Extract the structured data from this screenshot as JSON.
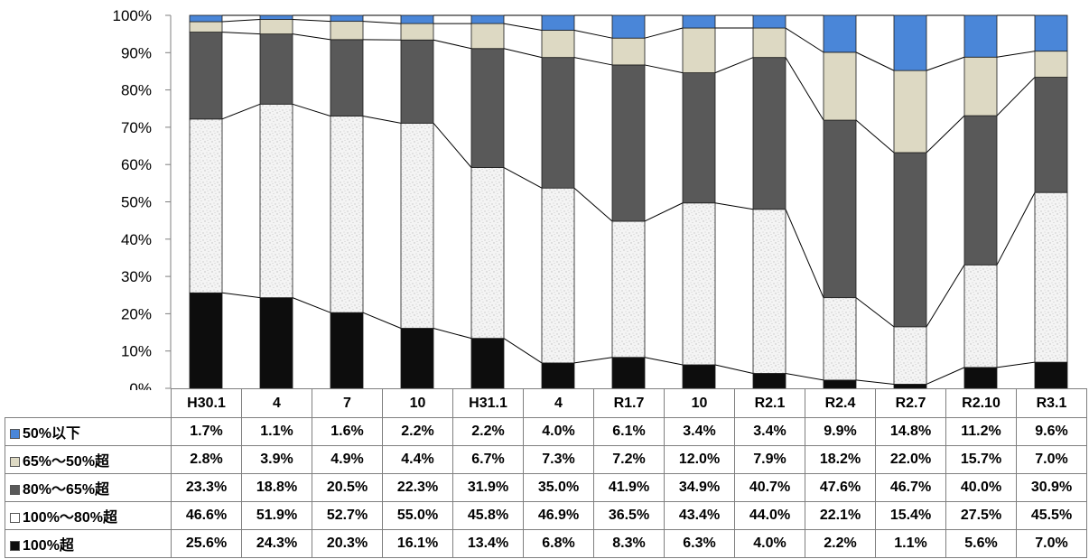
{
  "chart_data": {
    "type": "bar",
    "stacked": true,
    "categories": [
      "H30.1",
      "4",
      "7",
      "10",
      "H31.1",
      "4",
      "R1.7",
      "10",
      "R2.1",
      "R2.4",
      "R2.7",
      "R2.10",
      "R3.1"
    ],
    "ylim": [
      0,
      100
    ],
    "y_tick_labels": [
      "0%",
      "10%",
      "20%",
      "30%",
      "40%",
      "50%",
      "60%",
      "70%",
      "80%",
      "90%",
      "100%"
    ],
    "value_suffix": "%",
    "grid": false,
    "series_lines": true,
    "legend": "data-table-below",
    "series": [
      {
        "name": "100%超",
        "color": "#0d0d0d",
        "values": [
          25.6,
          24.3,
          20.3,
          16.1,
          13.4,
          6.8,
          8.3,
          6.3,
          4.0,
          2.2,
          1.1,
          5.6,
          7.0
        ]
      },
      {
        "name": "100%～80%超",
        "color": "#f2f2f2",
        "pattern": "speckled",
        "values": [
          46.6,
          51.9,
          52.7,
          55.0,
          45.8,
          46.9,
          36.5,
          43.4,
          44.0,
          22.1,
          15.4,
          27.5,
          45.5
        ]
      },
      {
        "name": "80%～65%超",
        "color": "#595959",
        "values": [
          23.3,
          18.8,
          20.5,
          22.3,
          31.9,
          35.0,
          41.9,
          34.9,
          40.7,
          47.6,
          46.7,
          40.0,
          30.9
        ]
      },
      {
        "name": "65%～50%超",
        "color": "#ddd9c3",
        "values": [
          2.8,
          3.9,
          4.9,
          4.4,
          6.7,
          7.3,
          7.2,
          12.0,
          7.9,
          18.2,
          22.0,
          15.7,
          7.0
        ]
      },
      {
        "name": "50%以下",
        "color": "#4a86d8",
        "values": [
          1.7,
          1.1,
          1.6,
          2.2,
          2.2,
          4.0,
          6.1,
          3.4,
          3.4,
          9.9,
          14.8,
          11.2,
          9.6
        ]
      }
    ]
  }
}
